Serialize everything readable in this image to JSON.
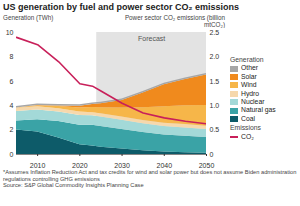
{
  "chart_data": {
    "type": "area",
    "title": "US generation by fuel and power sector CO₂ emissions",
    "y_label": "Generation (TWh)",
    "y2_label": "Power sector CO₂ emissions (billion mtCO₂)",
    "legend_headings": [
      "Generation",
      "Emissions"
    ],
    "forecast": {
      "label": "Forecast",
      "start": 2024,
      "end": 2050
    },
    "note": "*Assumes Inflation Reduction Act and tax credits for wind and solar power but does not assume Biden administration regulations controlling GHG emissions",
    "source": "Source: S&P Global Commodity Insights Planning Case",
    "stacked": true,
    "grid": false,
    "legend": "right",
    "x": [
      2005,
      2010,
      2015,
      2020,
      2023,
      2025,
      2030,
      2035,
      2040,
      2045,
      2050
    ],
    "xlim": [
      2005,
      2050
    ],
    "xticks": [
      2010,
      2020,
      2030,
      2040,
      2050
    ],
    "ylim": [
      0,
      10
    ],
    "yticks": [
      0,
      2,
      4,
      6,
      8,
      10
    ],
    "y2lim": [
      0,
      2.5
    ],
    "y2ticks": [
      0,
      0.5,
      {
        "value": 1,
        "label": "1.0"
      },
      1.5,
      {
        "value": 2,
        "label": "2.0"
      },
      2.5
    ],
    "series": [
      {
        "name": "Coal",
        "color": "#0d5b69",
        "values": [
          2.0,
          1.85,
          1.35,
          0.8,
          0.7,
          0.6,
          0.45,
          0.3,
          0.2,
          0.15,
          0.1
        ]
      },
      {
        "name": "Natural gas",
        "color": "#3aa3a6",
        "values": [
          0.75,
          1.0,
          1.35,
          1.6,
          1.7,
          1.7,
          1.6,
          1.5,
          1.4,
          1.35,
          1.3
        ]
      },
      {
        "name": "Nuclear",
        "color": "#a3d9d8",
        "values": [
          0.78,
          0.8,
          0.79,
          0.79,
          0.78,
          0.78,
          0.75,
          0.72,
          0.7,
          0.68,
          0.65
        ]
      },
      {
        "name": "Hydro",
        "color": "#f6d8ac",
        "values": [
          0.27,
          0.26,
          0.25,
          0.29,
          0.25,
          0.26,
          0.27,
          0.27,
          0.27,
          0.27,
          0.27
        ]
      },
      {
        "name": "Wind",
        "color": "#f6b649",
        "values": [
          0.02,
          0.09,
          0.19,
          0.34,
          0.43,
          0.5,
          0.75,
          1.05,
          1.35,
          1.55,
          1.7
        ]
      },
      {
        "name": "Solar",
        "color": "#f08a1d",
        "values": [
          0,
          0.01,
          0.04,
          0.13,
          0.24,
          0.33,
          0.6,
          1.2,
          1.8,
          2.15,
          2.5
        ]
      },
      {
        "name": "Other",
        "color": "#a6a6a6",
        "values": [
          0.12,
          0.12,
          0.12,
          0.12,
          0.12,
          0.12,
          0.12,
          0.12,
          0.12,
          0.12,
          0.12
        ]
      },
      {
        "name": "CO₂",
        "color": "#c8205a",
        "type": "line",
        "axis": "y2",
        "values": [
          2.4,
          2.25,
          1.9,
          1.45,
          1.4,
          1.3,
          1.05,
          0.85,
          0.75,
          0.68,
          0.63
        ]
      }
    ]
  }
}
